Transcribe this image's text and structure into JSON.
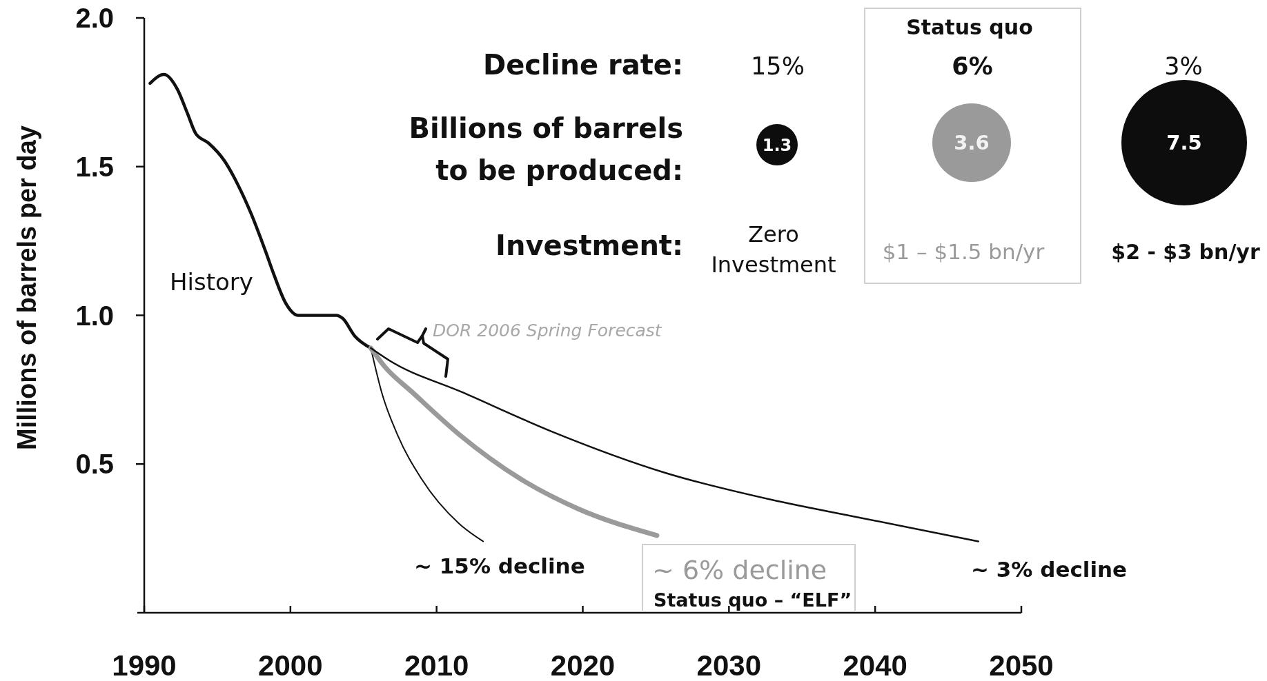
{
  "chart_data": {
    "type": "line",
    "ylabel": "Millions of barrels per day",
    "xlim": [
      1990,
      2050
    ],
    "xticks": [
      1990,
      2000,
      2010,
      2020,
      2030,
      2040,
      2050
    ],
    "ylim": [
      0,
      2
    ],
    "yticks": [
      0.5,
      {
        "value": 1,
        "label": "1.0"
      },
      1.5,
      {
        "value": 2,
        "label": "2.0"
      }
    ],
    "series": [
      {
        "name": "History",
        "color": "#111111",
        "x": [
          1990.4,
          1991.35,
          1992.27,
          1992.95,
          1993.54,
          1994.38,
          1995.48,
          1996.4,
          1997.33,
          1998.34,
          1998.85,
          1999.69,
          2000.53,
          2001.71,
          2003.14,
          2003.57,
          2004.41,
          2005.5
        ],
        "values": [
          1.78,
          1.81,
          1.76,
          1.68,
          1.61,
          1.58,
          1.52,
          1.44,
          1.34,
          1.21,
          1.14,
          1.04,
          1.0,
          1.0,
          1.0,
          0.99,
          0.93,
          0.89
        ]
      },
      {
        "name": "~ 15% decline",
        "color": "#111111",
        "x": [
          2005.5,
          2006.25,
          2007.31,
          2008.97,
          2011.53,
          2013.18
        ],
        "values": [
          0.89,
          0.74,
          0.6,
          0.45,
          0.3,
          0.24
        ]
      },
      {
        "name": "~ 6% decline",
        "color": "#9a9a9a",
        "x": [
          2005.5,
          2006.41,
          2008.37,
          2011.53,
          2015.74,
          2019.66,
          2025.07
        ],
        "values": [
          0.89,
          0.83,
          0.74,
          0.6,
          0.45,
          0.35,
          0.26
        ]
      },
      {
        "name": "~ 3% decline",
        "color": "#111111",
        "x": [
          2005.5,
          2006.71,
          2011.83,
          2017.85,
          2025.68,
          2032.91,
          2038.93,
          2047.06
        ],
        "values": [
          0.89,
          0.85,
          0.74,
          0.61,
          0.47,
          0.38,
          0.32,
          0.24
        ]
      }
    ],
    "annotations": [
      "Decline rate:",
      "15%",
      "Status quo",
      "6%",
      "3%",
      "Billions of barrels\nto be produced:",
      "1.3",
      "3.6",
      "7.5",
      "Investment:",
      "Zero\nInvestment",
      "$1 – $1.5 bn/yr",
      "$2 - $3 bn/yr",
      "DOR 2006 Spring Forecast",
      "Status quo – “ELF”"
    ]
  }
}
